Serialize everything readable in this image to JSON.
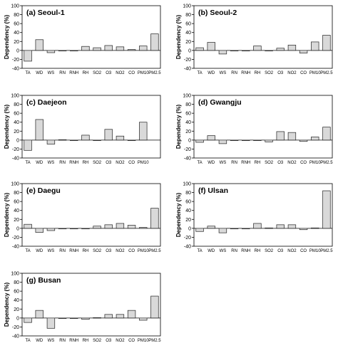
{
  "chart_data": [
    {
      "type": "bar",
      "title": "(a) Seoul-1",
      "ylabel": "Dependency (%)",
      "ylim": [
        -40,
        100
      ],
      "yticks": [
        -40,
        -20,
        0,
        20,
        40,
        60,
        80,
        100
      ],
      "categories": [
        "TA",
        "WD",
        "WS",
        "RN",
        "RNH",
        "RH",
        "SO2",
        "O3",
        "NO2",
        "CO",
        "PM10",
        "PM2.5"
      ],
      "values": [
        -24,
        24,
        -5,
        -1,
        0,
        9,
        6,
        11,
        8,
        2,
        10,
        37
      ]
    },
    {
      "type": "bar",
      "title": "(b) Seoul-2",
      "ylabel": "Dependency (%)",
      "ylim": [
        -40,
        100
      ],
      "yticks": [
        -40,
        -20,
        0,
        20,
        40,
        60,
        80,
        100
      ],
      "categories": [
        "TA",
        "WD",
        "WS",
        "RN",
        "RNH",
        "RH",
        "SO2",
        "O3",
        "NO2",
        "CO",
        "PM10",
        "PM2.5"
      ],
      "values": [
        6,
        18,
        -8,
        -1,
        0,
        10,
        -1,
        5,
        12,
        -6,
        19,
        34
      ]
    },
    {
      "type": "bar",
      "title": "(c) Daejeon",
      "ylabel": "Dependency (%)",
      "ylim": [
        -40,
        100
      ],
      "yticks": [
        -40,
        -20,
        0,
        20,
        40,
        60,
        80,
        100
      ],
      "categories": [
        "TA",
        "WD",
        "WS",
        "RN",
        "RNH",
        "RH",
        "SO2",
        "O3",
        "NO2",
        "CO",
        "PM10"
      ],
      "values": [
        -23,
        46,
        -9,
        1,
        0,
        11,
        -1,
        24,
        9,
        0,
        40
      ]
    },
    {
      "type": "bar",
      "title": "(d) Gwangju",
      "ylabel": "Dependency (%)",
      "ylim": [
        -40,
        100
      ],
      "yticks": [
        -40,
        -20,
        0,
        20,
        40,
        60,
        80,
        100
      ],
      "categories": [
        "TA",
        "WD",
        "WS",
        "RN",
        "RNH",
        "RH",
        "SO2",
        "O3",
        "NO2",
        "CO",
        "PM10",
        "PM2.5"
      ],
      "values": [
        -5,
        10,
        -8,
        -1,
        -1,
        -1,
        -4,
        19,
        17,
        -3,
        7,
        29
      ]
    },
    {
      "type": "bar",
      "title": "(e) Daegu",
      "ylabel": "Dependency (%)",
      "ylim": [
        -40,
        100
      ],
      "yticks": [
        -40,
        -20,
        0,
        20,
        40,
        60,
        80,
        100
      ],
      "categories": [
        "TA",
        "WD",
        "WS",
        "RN",
        "RNH",
        "RH",
        "SO2",
        "O3",
        "NO2",
        "CO",
        "PM10",
        "PM2.5"
      ],
      "values": [
        9,
        -9,
        -5,
        0,
        0,
        0,
        5,
        8,
        11,
        7,
        2,
        45
      ]
    },
    {
      "type": "bar",
      "title": "(f) Ulsan",
      "ylabel": "Dependency (%)",
      "ylim": [
        -40,
        100
      ],
      "yticks": [
        -40,
        -20,
        0,
        20,
        40,
        60,
        80,
        100
      ],
      "categories": [
        "TA",
        "WD",
        "WS",
        "RN",
        "RNH",
        "RH",
        "SO2",
        "O3",
        "NO2",
        "CO",
        "PM10",
        "PM2.5"
      ],
      "values": [
        -7,
        5,
        -10,
        0,
        0,
        11,
        1,
        8,
        8,
        -3,
        1,
        84
      ]
    },
    {
      "type": "bar",
      "title": "(g) Busan",
      "ylabel": "Dependency (%)",
      "ylim": [
        -40,
        100
      ],
      "yticks": [
        -40,
        -20,
        0,
        20,
        40,
        60,
        80,
        100
      ],
      "categories": [
        "TA",
        "WD",
        "WS",
        "RN",
        "RNH",
        "RH",
        "SO2",
        "O3",
        "NO2",
        "CO",
        "PM10",
        "PM2.5"
      ],
      "values": [
        -10,
        17,
        -23,
        -1,
        0,
        -3,
        1,
        8,
        8,
        17,
        -5,
        49
      ]
    }
  ],
  "colors": {
    "bar_fill": "#d9d9d9",
    "bar_stroke": "#222222",
    "axis": "#000000"
  }
}
